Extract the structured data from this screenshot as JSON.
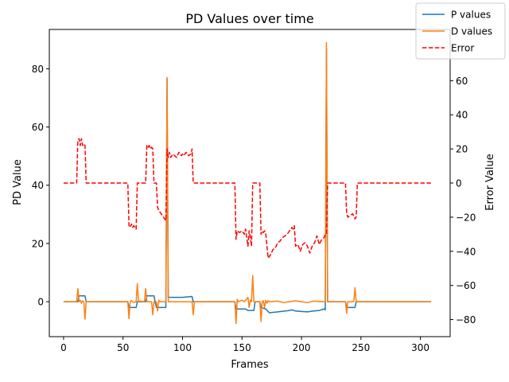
{
  "chart_data": {
    "type": "line",
    "title": "PD Values over time",
    "xlabel": "Frames",
    "ylabel": "PD Value",
    "y2label": "Error Value",
    "xlim": [
      -12,
      325
    ],
    "ylim": [
      -12,
      93.5
    ],
    "y2lim": [
      -90,
      90
    ],
    "xticks": [
      0,
      50,
      100,
      150,
      200,
      250,
      300
    ],
    "yticks": [
      0,
      20,
      40,
      60,
      80
    ],
    "y2ticks": [
      -80,
      -60,
      -40,
      -20,
      0,
      20,
      40,
      60
    ],
    "legend_position": "top-right",
    "series": [
      {
        "name": "P values",
        "axis": "left",
        "color": "#1f77b4",
        "dash": "solid",
        "points": [
          [
            0,
            0
          ],
          [
            12,
            0
          ],
          [
            13,
            2.0
          ],
          [
            18,
            2.0
          ],
          [
            19,
            0
          ],
          [
            54,
            0
          ],
          [
            55,
            -2.0
          ],
          [
            61,
            -2.0
          ],
          [
            62,
            0
          ],
          [
            69,
            0
          ],
          [
            70,
            2.0
          ],
          [
            76,
            2.0
          ],
          [
            77,
            0
          ],
          [
            78,
            -2.0
          ],
          [
            86,
            -2.0
          ],
          [
            87,
            76.5
          ],
          [
            88,
            1.5
          ],
          [
            95,
            1.5
          ],
          [
            100,
            1.5
          ],
          [
            108,
            1.8
          ],
          [
            109,
            0
          ],
          [
            144,
            0
          ],
          [
            145,
            -2.5
          ],
          [
            153,
            -2.5
          ],
          [
            155,
            -3.0
          ],
          [
            160,
            -3.0
          ],
          [
            161,
            0
          ],
          [
            165,
            0
          ],
          [
            166,
            -2.0
          ],
          [
            170,
            -2.5
          ],
          [
            173,
            -3.8
          ],
          [
            180,
            -3.5
          ],
          [
            190,
            -3.0
          ],
          [
            192,
            -2.8
          ],
          [
            195,
            -3.2
          ],
          [
            205,
            -3.5
          ],
          [
            210,
            -3.2
          ],
          [
            215,
            -3.0
          ],
          [
            219,
            -2.5
          ],
          [
            220,
            -2.8
          ],
          [
            221,
            87
          ],
          [
            222,
            0
          ],
          [
            237,
            0
          ],
          [
            238,
            -2.0
          ],
          [
            245,
            -2.0
          ],
          [
            246,
            0
          ],
          [
            309,
            0
          ]
        ]
      },
      {
        "name": "D values",
        "axis": "left",
        "color": "#ff7f0e",
        "dash": "solid",
        "points": [
          [
            0,
            0
          ],
          [
            11,
            0
          ],
          [
            12,
            4.5
          ],
          [
            13,
            0
          ],
          [
            14,
            0.5
          ],
          [
            15,
            -0.5
          ],
          [
            16,
            0.3
          ],
          [
            17,
            0
          ],
          [
            18,
            -6
          ],
          [
            19,
            0
          ],
          [
            54,
            0
          ],
          [
            55,
            -5.8
          ],
          [
            56,
            0
          ],
          [
            57,
            0.4
          ],
          [
            58,
            0
          ],
          [
            59,
            -0.3
          ],
          [
            61,
            0
          ],
          [
            62,
            6.2
          ],
          [
            63,
            0
          ],
          [
            64,
            0.2
          ],
          [
            68,
            0
          ],
          [
            69,
            4.5
          ],
          [
            70,
            0
          ],
          [
            74,
            0
          ],
          [
            75,
            -4.5
          ],
          [
            76,
            0
          ],
          [
            78,
            0
          ],
          [
            79,
            -3.2
          ],
          [
            80,
            0.5
          ],
          [
            81,
            0
          ],
          [
            86,
            0
          ],
          [
            87,
            77
          ],
          [
            88,
            0
          ],
          [
            108,
            0
          ],
          [
            109,
            -4.5
          ],
          [
            110,
            0
          ],
          [
            144,
            0
          ],
          [
            145,
            -7.5
          ],
          [
            146,
            0.8
          ],
          [
            147,
            0
          ],
          [
            150,
            0.5
          ],
          [
            152,
            0
          ],
          [
            155,
            1.5
          ],
          [
            156,
            -2
          ],
          [
            157,
            0.5
          ],
          [
            158,
            0
          ],
          [
            159,
            9
          ],
          [
            160,
            0
          ],
          [
            161,
            0
          ],
          [
            165,
            0
          ],
          [
            166,
            -6.8
          ],
          [
            167,
            0
          ],
          [
            168,
            0.3
          ],
          [
            169,
            -2
          ],
          [
            170,
            0.5
          ],
          [
            171,
            -0.5
          ],
          [
            172,
            0.4
          ],
          [
            173,
            0
          ],
          [
            180,
            0.2
          ],
          [
            185,
            -0.3
          ],
          [
            190,
            0
          ],
          [
            195,
            0.3
          ],
          [
            200,
            0
          ],
          [
            205,
            -0.3
          ],
          [
            210,
            0.2
          ],
          [
            219,
            0
          ],
          [
            220,
            0
          ],
          [
            221,
            89
          ],
          [
            222,
            0
          ],
          [
            237,
            0
          ],
          [
            238,
            -4
          ],
          [
            239,
            0
          ],
          [
            244,
            0
          ],
          [
            245,
            4.8
          ],
          [
            246,
            0
          ],
          [
            309,
            0
          ]
        ]
      },
      {
        "name": "Error",
        "axis": "right",
        "color": "#ff0000",
        "dash": "dashed",
        "points": [
          [
            0,
            0
          ],
          [
            11,
            0
          ],
          [
            12,
            25
          ],
          [
            13,
            26
          ],
          [
            14,
            22
          ],
          [
            15,
            26
          ],
          [
            16,
            22
          ],
          [
            17,
            23
          ],
          [
            18,
            22
          ],
          [
            19,
            0
          ],
          [
            54,
            0
          ],
          [
            55,
            -25
          ],
          [
            56,
            -26
          ],
          [
            57,
            -24
          ],
          [
            58,
            -26
          ],
          [
            59,
            -25
          ],
          [
            60,
            -26
          ],
          [
            61,
            -27
          ],
          [
            62,
            0
          ],
          [
            69,
            0
          ],
          [
            70,
            22
          ],
          [
            71,
            21
          ],
          [
            72,
            22
          ],
          [
            73,
            20
          ],
          [
            74,
            21
          ],
          [
            75,
            20
          ],
          [
            76,
            0
          ],
          [
            78,
            0
          ],
          [
            79,
            -14
          ],
          [
            80,
            -16
          ],
          [
            82,
            -18
          ],
          [
            84,
            -20
          ],
          [
            86,
            -22
          ],
          [
            87,
            20
          ],
          [
            88,
            15
          ],
          [
            89,
            18
          ],
          [
            90,
            15
          ],
          [
            92,
            17
          ],
          [
            95,
            15
          ],
          [
            97,
            18
          ],
          [
            99,
            16
          ],
          [
            100,
            17
          ],
          [
            101,
            16
          ],
          [
            103,
            18
          ],
          [
            105,
            16
          ],
          [
            107,
            17
          ],
          [
            108,
            20
          ],
          [
            109,
            0
          ],
          [
            144,
            0
          ],
          [
            145,
            -33
          ],
          [
            146,
            -28
          ],
          [
            148,
            -29
          ],
          [
            150,
            -28
          ],
          [
            152,
            -30
          ],
          [
            153,
            -27
          ],
          [
            154,
            -32
          ],
          [
            155,
            -37
          ],
          [
            156,
            -28
          ],
          [
            157,
            -32
          ],
          [
            158,
            -37
          ],
          [
            159,
            0
          ],
          [
            160,
            0
          ],
          [
            165,
            0
          ],
          [
            166,
            -30
          ],
          [
            167,
            -28
          ],
          [
            168,
            -29
          ],
          [
            169,
            -28
          ],
          [
            170,
            -30
          ],
          [
            172,
            -44
          ],
          [
            174,
            -42
          ],
          [
            176,
            -39
          ],
          [
            178,
            -38
          ],
          [
            180,
            -35
          ],
          [
            182,
            -34
          ],
          [
            184,
            -32
          ],
          [
            186,
            -31
          ],
          [
            188,
            -30
          ],
          [
            190,
            -28
          ],
          [
            192,
            -26
          ],
          [
            193,
            -27
          ],
          [
            194,
            -25
          ],
          [
            195,
            -37
          ],
          [
            197,
            -36
          ],
          [
            199,
            -40
          ],
          [
            201,
            -36
          ],
          [
            203,
            -35
          ],
          [
            205,
            -37
          ],
          [
            207,
            -41
          ],
          [
            209,
            -37
          ],
          [
            211,
            -35
          ],
          [
            213,
            -31
          ],
          [
            215,
            -36
          ],
          [
            217,
            -33
          ],
          [
            219,
            -32
          ],
          [
            220,
            -30
          ],
          [
            221,
            -30
          ],
          [
            222,
            0
          ],
          [
            237,
            0
          ],
          [
            238,
            -18
          ],
          [
            239,
            -20
          ],
          [
            241,
            -19
          ],
          [
            243,
            -18
          ],
          [
            245,
            -21
          ],
          [
            246,
            -20
          ],
          [
            247,
            0
          ],
          [
            309,
            0
          ]
        ]
      }
    ]
  }
}
